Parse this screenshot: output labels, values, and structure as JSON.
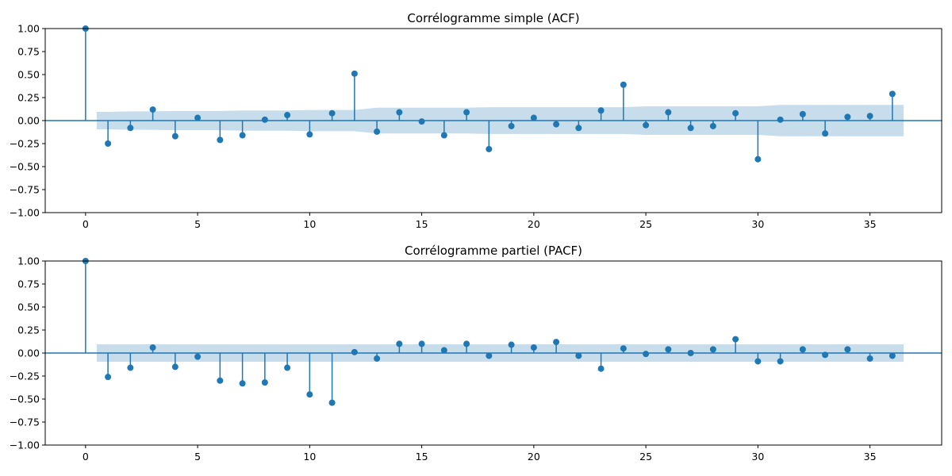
{
  "chart_data": [
    {
      "type": "stem",
      "title": "Corrélogramme simple (ACF)",
      "xlabel": "",
      "ylabel": "",
      "xlim": [
        -1.8,
        38.2
      ],
      "ylim": [
        -1.0,
        1.0
      ],
      "xticks": [
        0,
        5,
        10,
        15,
        20,
        25,
        30,
        35
      ],
      "yticks": [
        1.0,
        0.75,
        0.5,
        0.25,
        0.0,
        -0.25,
        -0.5,
        -0.75,
        -1.0
      ],
      "yticklabels": [
        "1.00",
        "0.75",
        "0.50",
        "0.25",
        "0.00",
        "−0.25",
        "−0.50",
        "−0.75",
        "−1.00"
      ],
      "grid": false,
      "lags": [
        0,
        1,
        2,
        3,
        4,
        5,
        6,
        7,
        8,
        9,
        10,
        11,
        12,
        13,
        14,
        15,
        16,
        17,
        18,
        19,
        20,
        21,
        22,
        23,
        24,
        25,
        26,
        27,
        28,
        29,
        30,
        31,
        32,
        33,
        34,
        35,
        36
      ],
      "values": [
        1.0,
        -0.25,
        -0.08,
        0.12,
        -0.17,
        0.03,
        -0.21,
        -0.16,
        0.01,
        0.06,
        -0.15,
        0.08,
        0.51,
        -0.12,
        0.09,
        -0.01,
        -0.16,
        0.09,
        -0.31,
        -0.06,
        0.03,
        -0.04,
        -0.08,
        0.11,
        0.39,
        -0.05,
        0.09,
        -0.08,
        -0.06,
        0.08,
        -0.42,
        0.01,
        0.07,
        -0.14,
        0.04,
        0.05,
        0.29
      ],
      "confidence_band": {
        "lags": [
          0.5,
          1,
          2,
          3,
          4,
          5,
          6,
          7,
          8,
          9,
          10,
          11,
          12,
          13,
          14,
          15,
          16,
          17,
          18,
          19,
          20,
          21,
          22,
          23,
          24,
          25,
          26,
          27,
          28,
          29,
          30,
          31,
          32,
          33,
          34,
          35,
          36,
          36.5
        ],
        "upper": [
          0.095,
          0.095,
          0.1,
          0.1,
          0.105,
          0.105,
          0.105,
          0.11,
          0.11,
          0.11,
          0.115,
          0.115,
          0.115,
          0.14,
          0.14,
          0.14,
          0.14,
          0.14,
          0.145,
          0.145,
          0.145,
          0.145,
          0.145,
          0.145,
          0.145,
          0.155,
          0.155,
          0.155,
          0.155,
          0.155,
          0.155,
          0.17,
          0.17,
          0.17,
          0.17,
          0.17,
          0.17,
          0.17
        ]
      },
      "colors": {
        "stem": "#1f77b4",
        "band": "#1f77b4",
        "band_opacity": 0.25
      }
    },
    {
      "type": "stem",
      "title": "Corrélogramme partiel (PACF)",
      "xlabel": "",
      "ylabel": "",
      "xlim": [
        -1.8,
        38.2
      ],
      "ylim": [
        -1.0,
        1.0
      ],
      "xticks": [
        0,
        5,
        10,
        15,
        20,
        25,
        30,
        35
      ],
      "yticks": [
        1.0,
        0.75,
        0.5,
        0.25,
        0.0,
        -0.25,
        -0.5,
        -0.75,
        -1.0
      ],
      "yticklabels": [
        "1.00",
        "0.75",
        "0.50",
        "0.25",
        "0.00",
        "−0.25",
        "−0.50",
        "−0.75",
        "−1.00"
      ],
      "grid": false,
      "lags": [
        0,
        1,
        2,
        3,
        4,
        5,
        6,
        7,
        8,
        9,
        10,
        11,
        12,
        13,
        14,
        15,
        16,
        17,
        18,
        19,
        20,
        21,
        22,
        23,
        24,
        25,
        26,
        27,
        28,
        29,
        30,
        31,
        32,
        33,
        34,
        35,
        36
      ],
      "values": [
        1.0,
        -0.26,
        -0.16,
        0.06,
        -0.15,
        -0.04,
        -0.3,
        -0.33,
        -0.32,
        -0.16,
        -0.45,
        -0.54,
        0.01,
        -0.06,
        0.1,
        0.1,
        0.03,
        0.1,
        -0.03,
        0.09,
        0.06,
        0.12,
        -0.03,
        -0.17,
        0.05,
        -0.01,
        0.04,
        0.0,
        0.04,
        0.15,
        -0.09,
        -0.09,
        0.04,
        -0.02,
        0.04,
        -0.06,
        -0.03
      ],
      "confidence_band": {
        "lags": [
          0.5,
          36.5
        ],
        "upper": [
          0.095,
          0.095
        ]
      },
      "colors": {
        "stem": "#1f77b4",
        "band": "#1f77b4",
        "band_opacity": 0.25
      }
    }
  ]
}
